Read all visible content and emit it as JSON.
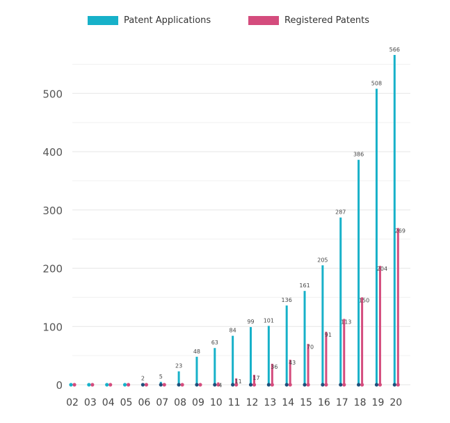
{
  "chart_data": {
    "type": "bar",
    "categories": [
      "02",
      "03",
      "04",
      "05",
      "06",
      "07",
      "08",
      "09",
      "10",
      "11",
      "12",
      "13",
      "14",
      "15",
      "16",
      "17",
      "18",
      "19",
      "20"
    ],
    "series": [
      {
        "name": "Patent Applications",
        "color": "#17b1c9",
        "values": [
          0,
          0,
          0,
          0,
          2,
          5,
          23,
          48,
          63,
          84,
          99,
          101,
          136,
          161,
          205,
          287,
          386,
          508,
          566
        ],
        "labels": [
          "",
          "",
          "",
          "",
          "2",
          "5",
          "23",
          "48",
          "63",
          "84",
          "99",
          "101",
          "136",
          "161",
          "205",
          "287",
          "386",
          "508",
          "566"
        ]
      },
      {
        "name": "Registered Patents",
        "color": "#d44c7d",
        "values": [
          0,
          0,
          0,
          0,
          0,
          0,
          0,
          0,
          4,
          11,
          17,
          36,
          43,
          70,
          91,
          113,
          150,
          204,
          269
        ],
        "labels": [
          "",
          "",
          "",
          "",
          "",
          "",
          "",
          "",
          "4",
          "11",
          "17",
          "36",
          "43",
          "70",
          "91",
          "113",
          "150",
          "204",
          "269"
        ]
      }
    ],
    "yticks": [
      "0",
      "100",
      "200",
      "300",
      "400",
      "500"
    ],
    "ylim": [
      0,
      566
    ],
    "grid": true,
    "legend_position": "top"
  }
}
